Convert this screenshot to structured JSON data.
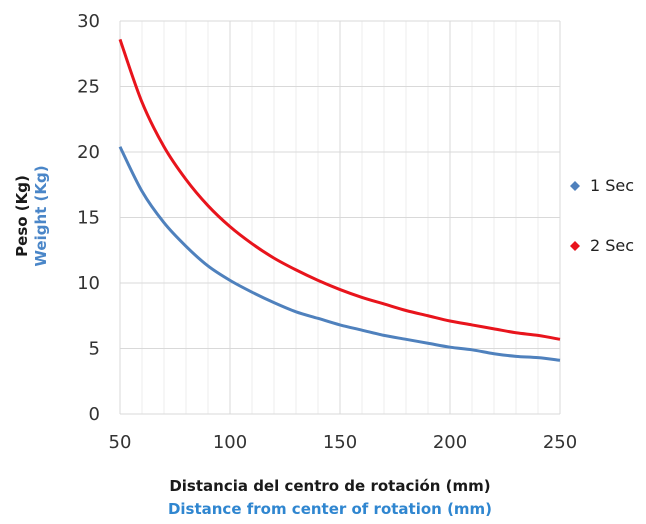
{
  "chart_data": {
    "type": "line",
    "xlabel": "Distancia del centro de rotación (mm)",
    "xlabel_secondary": "Distance from center of rotation (mm)",
    "ylabel": "Peso (Kg)",
    "ylabel_secondary": "Weight (Kg)",
    "xlim": [
      50,
      250
    ],
    "ylim": [
      0,
      30
    ],
    "x_ticks": [
      50,
      100,
      150,
      200,
      250
    ],
    "y_ticks": [
      0,
      5,
      10,
      15,
      20,
      25,
      30
    ],
    "grid": true,
    "legend_position": "right",
    "x": [
      50,
      60,
      70,
      80,
      90,
      100,
      110,
      120,
      130,
      140,
      150,
      160,
      170,
      180,
      190,
      200,
      210,
      220,
      230,
      240,
      250
    ],
    "series": [
      {
        "name": "1 Sec",
        "color": "#4f81bd",
        "values": [
          20.4,
          17.0,
          14.6,
          12.8,
          11.3,
          10.2,
          9.3,
          8.5,
          7.8,
          7.3,
          6.8,
          6.4,
          6.0,
          5.7,
          5.4,
          5.1,
          4.9,
          4.6,
          4.4,
          4.3,
          4.1
        ]
      },
      {
        "name": "2 Sec",
        "color": "#e8141c",
        "values": [
          28.6,
          23.8,
          20.4,
          17.9,
          15.9,
          14.3,
          13.0,
          11.9,
          11.0,
          10.2,
          9.5,
          8.9,
          8.4,
          7.9,
          7.5,
          7.1,
          6.8,
          6.5,
          6.2,
          6.0,
          5.7
        ]
      }
    ]
  }
}
